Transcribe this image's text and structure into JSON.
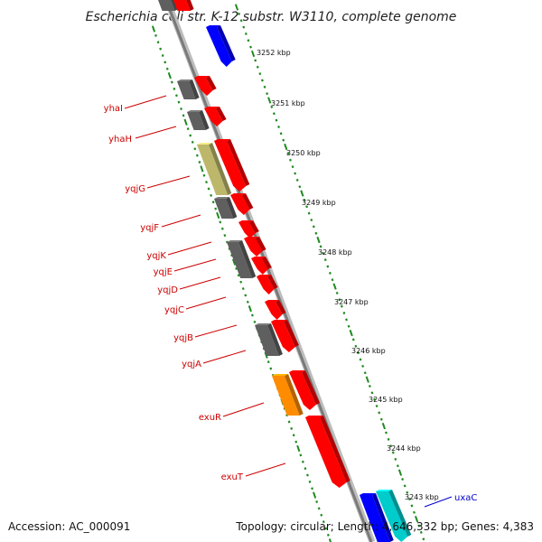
{
  "title": "Escherichia coli str. K-12 substr. W3110, complete genome",
  "footer": {
    "accession": "Accession: AC_000091",
    "summary": "Topology: circular; Length: 4,646,332 bp; Genes: 4,383"
  },
  "colors": {
    "backbone": "#8c8c8c",
    "scale_ticks": "#1f8a1f",
    "gene_label": "#cc0000",
    "gene_label_alt": "#0000cc",
    "forward_gene": "#ff0000",
    "reverse_gene": "#5f5f5f",
    "olive_gene": "#bdb76b",
    "orange_gene": "#ff8c00",
    "blue_gene": "#0000ff",
    "cyan_gene": "#00cccc"
  },
  "scale_labels": [
    "3252 kbp",
    "3251 kbp",
    "3250 kbp",
    "3249 kbp",
    "3248 kbp",
    "3247 kbp",
    "3246 kbp",
    "3245 kbp",
    "3244 kbp",
    "3243 kbp"
  ],
  "gene_labels": [
    {
      "name": "yhaI",
      "color": "#cc0000"
    },
    {
      "name": "yhaH",
      "color": "#cc0000"
    },
    {
      "name": "yqjG",
      "color": "#cc0000"
    },
    {
      "name": "yqjF",
      "color": "#cc0000"
    },
    {
      "name": "yqjK",
      "color": "#cc0000"
    },
    {
      "name": "yqjE",
      "color": "#cc0000"
    },
    {
      "name": "yqjD",
      "color": "#cc0000"
    },
    {
      "name": "yqjC",
      "color": "#cc0000"
    },
    {
      "name": "yqjB",
      "color": "#cc0000"
    },
    {
      "name": "yqjA",
      "color": "#cc0000"
    },
    {
      "name": "exuR",
      "color": "#cc0000"
    },
    {
      "name": "exuT",
      "color": "#cc0000"
    },
    {
      "name": "uxaC",
      "color": "#0000cc"
    }
  ]
}
